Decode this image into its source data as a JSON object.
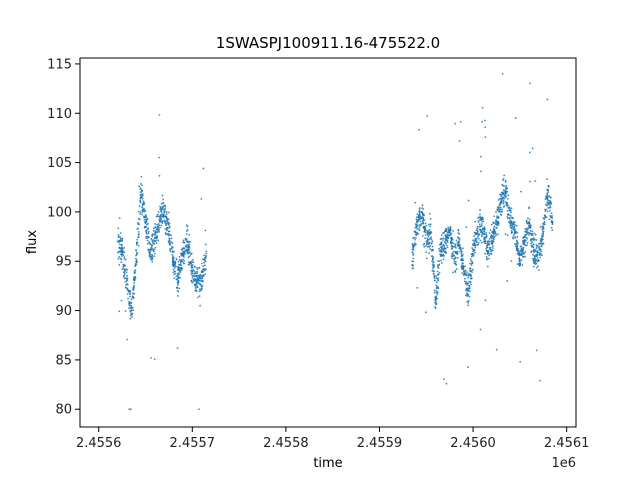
{
  "chart_data": {
    "type": "scatter",
    "title": "1SWASPJ100911.16-475522.0",
    "xlabel": "time",
    "ylabel": "flux",
    "x_offset_label": "1e6",
    "xlim": [
      2.45558,
      2.45611
    ],
    "ylim": [
      78.2,
      115.6
    ],
    "x_ticks": [
      2.4556,
      2.4557,
      2.4558,
      2.4559,
      2.456,
      2.4561
    ],
    "x_tick_labels": [
      "2.4556",
      "2.4557",
      "2.4558",
      "2.4559",
      "2.4560",
      "2.4561"
    ],
    "y_ticks": [
      80,
      85,
      90,
      95,
      100,
      105,
      110,
      115
    ],
    "y_tick_labels": [
      "80",
      "85",
      "90",
      "95",
      "100",
      "105",
      "110",
      "115"
    ],
    "grid": false,
    "marker_color": "#1f77b4",
    "series": [
      {
        "values_x": [
          2.45562,
          2.455625,
          2.45563,
          2.455635,
          2.45564,
          2.455645,
          2.45565,
          2.455655,
          2.45566,
          2.455665,
          2.45567,
          2.455675,
          2.45568,
          2.455685,
          2.45569,
          2.455695,
          2.4557,
          2.455705,
          2.45571,
          2.455715,
          2.455935,
          2.45594,
          2.455945,
          2.45595,
          2.455955,
          2.45596,
          2.455965,
          2.45597,
          2.455975,
          2.45598,
          2.455985,
          2.45599,
          2.455995,
          2.456,
          2.456005,
          2.45601,
          2.456015,
          2.45602,
          2.456025,
          2.45603,
          2.456035,
          2.45604,
          2.456045,
          2.45605,
          2.456055,
          2.45606,
          2.456065,
          2.45607,
          2.456075,
          2.45608,
          2.456085
        ],
        "values_y": [
          97,
          96,
          93,
          90,
          95,
          102,
          99,
          96,
          97,
          99,
          100,
          98,
          95,
          93,
          96,
          97,
          94,
          93,
          93,
          96,
          95,
          99,
          100,
          97,
          98,
          91,
          96,
          97,
          98,
          95,
          97,
          94,
          92,
          96,
          98,
          99,
          96,
          97,
          99,
          101,
          102,
          99,
          98,
          95,
          97,
          99,
          96,
          95,
          98,
          102,
          99
        ]
      }
    ]
  }
}
